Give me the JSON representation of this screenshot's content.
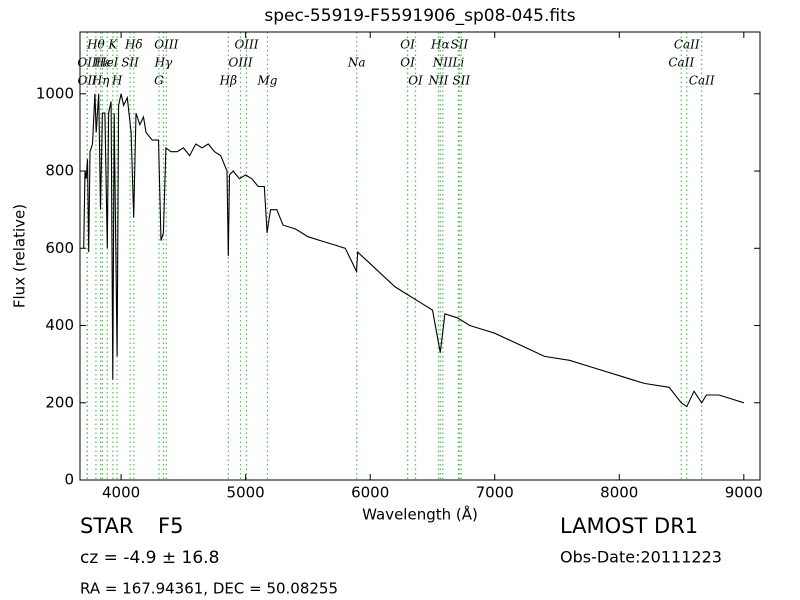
{
  "chart_data": {
    "type": "line",
    "title": "spec-55919-F5591906_sp08-045.fits",
    "x_label": "Wavelength (Å)",
    "y_label": "Flux (relative)",
    "xlim": [
      3670,
      9130
    ],
    "ylim": [
      0,
      1160
    ],
    "xticks": [
      4000,
      5000,
      6000,
      7000,
      8000,
      9000
    ],
    "yticks": [
      0,
      200,
      400,
      600,
      800,
      1000
    ],
    "color": "#000000",
    "spectral_line_color": "#55bb55",
    "x": [
      3700,
      3710,
      3720,
      3730,
      3740,
      3750,
      3770,
      3790,
      3800,
      3820,
      3835,
      3850,
      3870,
      3889,
      3900,
      3920,
      3933,
      3945,
      3968,
      3980,
      4000,
      4020,
      4050,
      4080,
      4101,
      4120,
      4150,
      4180,
      4200,
      4250,
      4300,
      4320,
      4340,
      4360,
      4400,
      4450,
      4500,
      4550,
      4600,
      4650,
      4700,
      4750,
      4800,
      4850,
      4861,
      4870,
      4900,
      4950,
      5000,
      5050,
      5100,
      5150,
      5172,
      5200,
      5250,
      5300,
      5400,
      5500,
      5600,
      5700,
      5800,
      5890,
      5900,
      6000,
      6100,
      6200,
      6300,
      6400,
      6500,
      6563,
      6600,
      6700,
      6800,
      6900,
      7000,
      7200,
      7400,
      7600,
      7800,
      8000,
      8200,
      8400,
      8498,
      8542,
      8600,
      8662,
      8700,
      8800,
      8900,
      9000
    ],
    "values": [
      600,
      800,
      780,
      830,
      590,
      850,
      870,
      1000,
      900,
      1000,
      700,
      950,
      950,
      600,
      950,
      980,
      260,
      950,
      320,
      970,
      1000,
      970,
      990,
      900,
      680,
      950,
      920,
      940,
      900,
      880,
      880,
      620,
      640,
      860,
      850,
      850,
      860,
      840,
      870,
      860,
      870,
      850,
      840,
      800,
      580,
      790,
      800,
      780,
      790,
      780,
      760,
      760,
      640,
      700,
      700,
      660,
      650,
      630,
      620,
      610,
      600,
      540,
      590,
      560,
      530,
      500,
      480,
      460,
      440,
      330,
      430,
      420,
      400,
      390,
      380,
      350,
      320,
      310,
      290,
      270,
      250,
      240,
      200,
      190,
      230,
      200,
      220,
      220,
      210,
      200
    ],
    "spectral_lines": [
      [
        {
          "label": "Hθ",
          "wavelength": 3798
        },
        {
          "label": "K",
          "wavelength": 3934
        },
        {
          "label": "Hδ",
          "wavelength": 4102
        },
        {
          "label": "OIII",
          "wavelength": 4363
        },
        {
          "label": "OIII",
          "wavelength": 5007
        },
        {
          "label": "OI",
          "wavelength": 6300
        },
        {
          "label": "Hα",
          "wavelength": 6563
        },
        {
          "label": "SII",
          "wavelength": 6716
        },
        {
          "label": "CaII",
          "wavelength": 8542
        }
      ],
      [
        {
          "label": "OII",
          "wavelength": 3727
        },
        {
          "label": "Hε",
          "wavelength": 3850
        },
        {
          "label": "HeI",
          "wavelength": 3889
        },
        {
          "label": "SII",
          "wavelength": 4072
        },
        {
          "label": "Hγ",
          "wavelength": 4340
        },
        {
          "label": "OIII",
          "wavelength": 4959
        },
        {
          "label": "Na",
          "wavelength": 5892
        },
        {
          "label": "OI",
          "wavelength": 6300
        },
        {
          "label": "NII",
          "wavelength": 6583
        },
        {
          "label": "Li",
          "wavelength": 6708
        },
        {
          "label": "CaII",
          "wavelength": 8498
        }
      ],
      [
        {
          "label": "OII",
          "wavelength": 3729
        },
        {
          "label": "Hη",
          "wavelength": 3835
        },
        {
          "label": "H",
          "wavelength": 3968
        },
        {
          "label": "G",
          "wavelength": 4304
        },
        {
          "label": "Hβ",
          "wavelength": 4861
        },
        {
          "label": "Mg",
          "wavelength": 5175
        },
        {
          "label": "OI",
          "wavelength": 6364
        },
        {
          "label": "NII",
          "wavelength": 6548
        },
        {
          "label": "SII",
          "wavelength": 6731
        },
        {
          "label": "CaII",
          "wavelength": 8662
        }
      ]
    ],
    "object_class": "STAR",
    "subclass": "F5",
    "survey": "LAMOST DR1",
    "redshift_text": "cz = -4.9 ± 16.8",
    "obs_date": "Obs-Date:20111223",
    "coordinates": "RA = 167.94361, DEC = 50.08255"
  }
}
